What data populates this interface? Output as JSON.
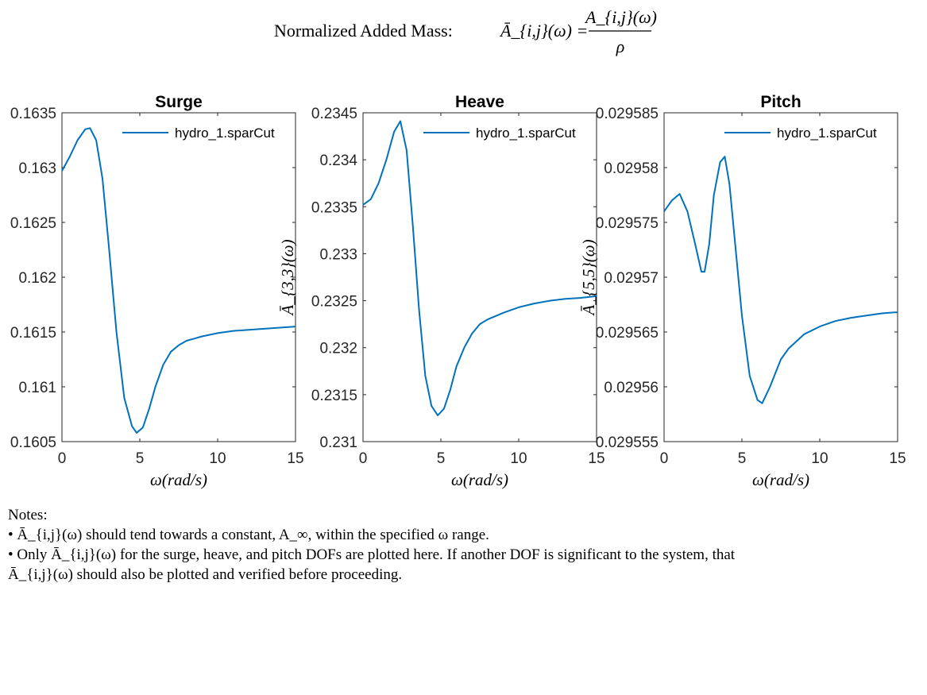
{
  "figure": {
    "title_prefix": "Normalized Added Mass: ",
    "title_lhs": "Ā_{i,j}(ω) =",
    "title_numerator": "A_{i,j}(ω)",
    "title_denominator": "ρ"
  },
  "notes": {
    "heading": "Notes:",
    "bullet1": "• Ā_{i,j}(ω) should tend towards a constant, A_∞, within the specified ω range.",
    "bullet2_line1": "• Only Ā_{i,j}(ω) for the surge, heave, and pitch DOFs are plotted here. If another DOF is significant to the system, that",
    "bullet2_line2": "Ā_{i,j}(ω) should also be plotted and verified before proceeding."
  },
  "colors": {
    "series": "#0072BD",
    "axis": "#262626"
  },
  "chart_data": [
    {
      "type": "line",
      "title": "Surge",
      "xlabel": "ω(rad/s)",
      "ylabel": "",
      "xlim": [
        0,
        15
      ],
      "ylim": [
        0.1605,
        0.1635
      ],
      "xticks": [
        "0",
        "5",
        "10",
        "15"
      ],
      "yticks": [
        "0.1605",
        "0.161",
        "0.1615",
        "0.162",
        "0.1625",
        "0.163",
        "0.1635"
      ],
      "legend": "top-right",
      "grid": false,
      "series": [
        {
          "name": "hydro_1.sparCut",
          "x": [
            0,
            0.5,
            1.0,
            1.5,
            1.8,
            2.2,
            2.6,
            3.0,
            3.5,
            4.0,
            4.5,
            4.8,
            5.2,
            5.6,
            6.0,
            6.5,
            7.0,
            7.5,
            8.0,
            8.5,
            9.0,
            10.0,
            11.0,
            12.0,
            13.0,
            14.0,
            15.0
          ],
          "y": [
            0.16297,
            0.1631,
            0.16325,
            0.16335,
            0.16336,
            0.16325,
            0.1629,
            0.1623,
            0.1615,
            0.1609,
            0.16064,
            0.16058,
            0.16063,
            0.1608,
            0.161,
            0.1612,
            0.16132,
            0.16138,
            0.16142,
            0.16144,
            0.16146,
            0.16149,
            0.16151,
            0.16152,
            0.16153,
            0.16154,
            0.16155
          ]
        }
      ]
    },
    {
      "type": "line",
      "title": "Heave",
      "xlabel": "ω(rad/s)",
      "ylabel": "Ā_{3,3}(ω)",
      "xlim": [
        0,
        15
      ],
      "ylim": [
        0.231,
        0.2345
      ],
      "xticks": [
        "0",
        "5",
        "10",
        "15"
      ],
      "yticks": [
        "0.231",
        "0.2315",
        "0.232",
        "0.2325",
        "0.233",
        "0.2335",
        "0.234",
        "0.2345"
      ],
      "legend": "top-right",
      "grid": false,
      "series": [
        {
          "name": "hydro_1.sparCut",
          "x": [
            0,
            0.5,
            1.0,
            1.5,
            2.0,
            2.4,
            2.8,
            3.2,
            3.6,
            4.0,
            4.4,
            4.8,
            5.2,
            5.6,
            6.0,
            6.5,
            7.0,
            7.5,
            8.0,
            9.0,
            10.0,
            11.0,
            12.0,
            13.0,
            14.0,
            15.0
          ],
          "y": [
            0.23352,
            0.23358,
            0.23375,
            0.234,
            0.2343,
            0.23441,
            0.2341,
            0.2333,
            0.2324,
            0.2317,
            0.23138,
            0.23128,
            0.23135,
            0.23155,
            0.2318,
            0.232,
            0.23215,
            0.23225,
            0.2323,
            0.23237,
            0.23243,
            0.23247,
            0.2325,
            0.23252,
            0.23253,
            0.23255
          ]
        }
      ]
    },
    {
      "type": "line",
      "title": "Pitch",
      "xlabel": "ω(rad/s)",
      "ylabel": "Ā_{5,5}(ω)",
      "xlim": [
        0,
        15
      ],
      "ylim": [
        0.029555,
        0.029585
      ],
      "xticks": [
        "0",
        "5",
        "10",
        "15"
      ],
      "yticks": [
        "0.029555",
        "0.02956",
        "0.029565",
        "0.02957",
        "0.029575",
        "0.02958",
        "0.029585"
      ],
      "legend": "top-right",
      "grid": false,
      "series": [
        {
          "name": "hydro_1.sparCut",
          "x": [
            0,
            0.5,
            1.0,
            1.5,
            2.0,
            2.4,
            2.6,
            2.9,
            3.2,
            3.6,
            3.9,
            4.2,
            4.6,
            5.0,
            5.5,
            6.0,
            6.3,
            6.8,
            7.5,
            8.0,
            9.0,
            10.0,
            11.0,
            12.0,
            13.0,
            14.0,
            14.8,
            15.0
          ],
          "y": [
            0.029576,
            0.029577,
            0.0295776,
            0.029576,
            0.029573,
            0.0295705,
            0.0295705,
            0.029573,
            0.0295775,
            0.0295805,
            0.029581,
            0.0295785,
            0.0295725,
            0.0295665,
            0.029561,
            0.0295588,
            0.0295585,
            0.02956,
            0.0295625,
            0.0295635,
            0.0295648,
            0.0295655,
            0.029566,
            0.0295663,
            0.0295665,
            0.0295667,
            0.0295668,
            0.0295668
          ]
        }
      ]
    }
  ]
}
